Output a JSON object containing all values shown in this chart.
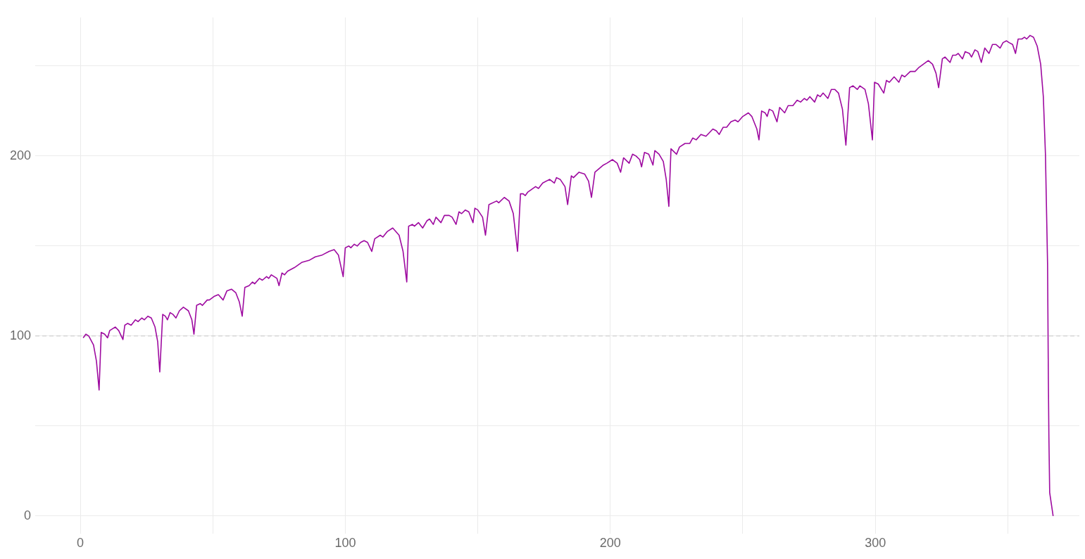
{
  "chart_data": {
    "type": "line",
    "color": "#9e0aa0",
    "x": [
      1.1,
      2.1,
      3.2,
      5.0,
      6.1,
      7.1,
      7.9,
      9.2,
      10.3,
      11.1,
      13.2,
      14.5,
      16.1,
      16.8,
      17.9,
      19.2,
      20.8,
      21.8,
      23.2,
      24.2,
      25.5,
      26.8,
      28.2,
      29.2,
      30.0,
      31.1,
      32.1,
      32.9,
      33.9,
      35.0,
      36.1,
      37.4,
      38.9,
      40.8,
      42.1,
      42.9,
      43.9,
      45.3,
      46.1,
      47.9,
      48.7,
      50.5,
      52.1,
      53.9,
      55.3,
      57.1,
      58.7,
      60.0,
      61.1,
      62.1,
      63.7,
      65.0,
      65.8,
      67.6,
      68.7,
      70.3,
      71.1,
      72.1,
      74.2,
      75.0,
      76.1,
      77.1,
      78.2,
      80.8,
      83.7,
      86.3,
      88.7,
      91.3,
      93.9,
      95.8,
      97.4,
      99.2,
      100.0,
      101.3,
      102.1,
      103.4,
      104.5,
      105.8,
      107.1,
      108.4,
      110.0,
      111.1,
      113.2,
      114.2,
      115.8,
      117.9,
      120.3,
      121.8,
      123.2,
      123.9,
      125.3,
      126.1,
      127.6,
      129.2,
      130.8,
      131.8,
      133.2,
      134.2,
      136.1,
      137.4,
      138.2,
      139.2,
      140.3,
      141.8,
      142.9,
      143.9,
      145.3,
      146.6,
      148.2,
      148.9,
      150.0,
      151.8,
      152.9,
      154.2,
      157.1,
      157.9,
      160.0,
      161.8,
      163.4,
      165.0,
      166.1,
      167.1,
      167.9,
      168.9,
      171.8,
      172.9,
      174.5,
      177.1,
      178.9,
      179.7,
      181.1,
      182.9,
      183.9,
      185.3,
      186.1,
      188.2,
      190.3,
      191.8,
      192.9,
      194.2,
      197.4,
      198.7,
      200.8,
      202.6,
      203.9,
      205.0,
      207.1,
      208.4,
      209.7,
      211.1,
      211.8,
      212.9,
      214.5,
      216.1,
      216.8,
      218.4,
      220.0,
      221.1,
      222.1,
      222.9,
      225.0,
      226.1,
      228.2,
      230.0,
      231.1,
      232.4,
      234.2,
      236.1,
      238.7,
      240.0,
      241.1,
      242.6,
      243.9,
      245.5,
      247.1,
      248.2,
      250.0,
      252.1,
      253.4,
      255.3,
      256.1,
      257.1,
      258.4,
      259.2,
      260.0,
      261.3,
      262.9,
      263.9,
      265.8,
      267.1,
      268.9,
      270.5,
      271.8,
      273.2,
      274.2,
      275.3,
      277.1,
      278.2,
      279.2,
      280.3,
      282.1,
      283.4,
      284.7,
      286.1,
      287.6,
      288.9,
      290.3,
      291.6,
      293.2,
      294.2,
      296.1,
      297.4,
      298.9,
      299.7,
      301.1,
      303.2,
      304.2,
      305.3,
      307.1,
      308.9,
      310.0,
      311.1,
      313.2,
      315.0,
      316.3,
      320.0,
      321.6,
      322.9,
      323.9,
      325.3,
      326.3,
      328.2,
      329.2,
      330.3,
      331.3,
      332.9,
      333.9,
      335.5,
      336.3,
      337.6,
      338.7,
      340.0,
      341.3,
      342.9,
      344.2,
      345.5,
      347.1,
      348.2,
      349.5,
      350.5,
      351.8,
      352.9,
      353.9,
      355.3,
      356.3,
      357.1,
      358.4,
      359.7,
      361.1,
      362.4,
      363.4,
      364.2,
      364.5,
      365.0,
      365.3,
      365.5,
      365.8,
      367.1
    ],
    "values": [
      99,
      101,
      100,
      95,
      86,
      70,
      102,
      101,
      99,
      103,
      105,
      103,
      98,
      106,
      107,
      106,
      109,
      108,
      110,
      109,
      111,
      110,
      105,
      97,
      80,
      112,
      111,
      109,
      113,
      112,
      110,
      114,
      116,
      114,
      109,
      101,
      117,
      118,
      117,
      120,
      120,
      122,
      123,
      120,
      125,
      126,
      124,
      119,
      111,
      127,
      128,
      130,
      129,
      132,
      131,
      133,
      132,
      134,
      132,
      128,
      135,
      134,
      136,
      138,
      141,
      142,
      144,
      145,
      147,
      148,
      145,
      133,
      149,
      150,
      149,
      151,
      150,
      152,
      153,
      152,
      147,
      154,
      156,
      155,
      158,
      160,
      156,
      147,
      130,
      161,
      162,
      161,
      163,
      160,
      164,
      165,
      162,
      166,
      163,
      167,
      167,
      167,
      166,
      162,
      169,
      168,
      170,
      169,
      163,
      171,
      170,
      166,
      156,
      173,
      175,
      174,
      177,
      175,
      168,
      147,
      179,
      179,
      178,
      180,
      183,
      182,
      185,
      187,
      185,
      188,
      187,
      183,
      173,
      189,
      188,
      191,
      190,
      186,
      177,
      191,
      195,
      196,
      198,
      196,
      191,
      199,
      196,
      201,
      200,
      198,
      194,
      202,
      201,
      195,
      203,
      201,
      197,
      187,
      172,
      204,
      201,
      205,
      207,
      207,
      210,
      209,
      212,
      211,
      215,
      214,
      212,
      216,
      216,
      219,
      220,
      219,
      222,
      224,
      222,
      215,
      209,
      225,
      224,
      222,
      226,
      225,
      219,
      227,
      224,
      228,
      228,
      231,
      230,
      232,
      231,
      233,
      230,
      234,
      233,
      235,
      232,
      237,
      237,
      235,
      226,
      206,
      238,
      239,
      237,
      239,
      237,
      229,
      209,
      241,
      240,
      235,
      242,
      241,
      244,
      241,
      245,
      244,
      247,
      247,
      249,
      253,
      251,
      246,
      238,
      254,
      255,
      252,
      256,
      256,
      257,
      254,
      258,
      257,
      255,
      259,
      258,
      252,
      260,
      257,
      262,
      262,
      260,
      263,
      264,
      263,
      262,
      257,
      265,
      265,
      266,
      265,
      267,
      266,
      261,
      251,
      233,
      201,
      178,
      140,
      76,
      44,
      13,
      0
    ],
    "xlim": [
      -17,
      377
    ],
    "ylim": [
      -10,
      277
    ],
    "xticks": [
      0,
      {
        "value": 50,
        "label": null
      },
      100,
      {
        "value": 150,
        "label": null
      },
      200,
      {
        "value": 250,
        "label": null
      },
      300,
      {
        "value": 350,
        "label": null
      }
    ],
    "yticks": [
      0,
      {
        "value": 50,
        "label": null
      },
      100,
      {
        "value": 150,
        "label": null
      },
      200,
      {
        "value": 250,
        "label": null
      }
    ],
    "grid": true,
    "ref_lines": [
      {
        "axis": "y",
        "value": 100,
        "color": "#c8c8c8",
        "line_style": "dashed"
      }
    ]
  }
}
